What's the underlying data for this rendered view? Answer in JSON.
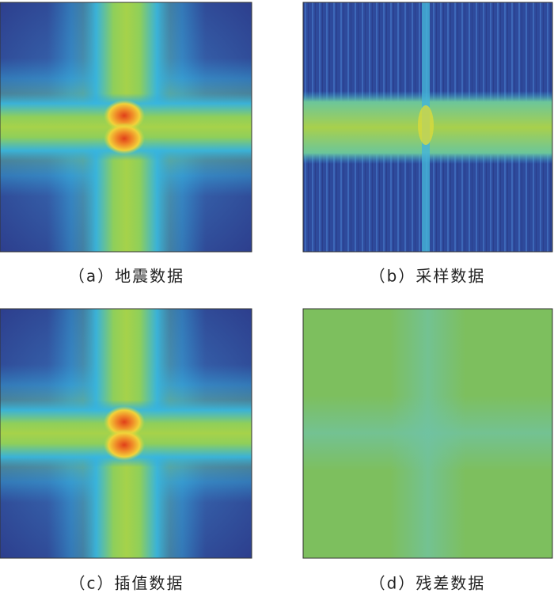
{
  "panels": [
    {
      "caption": "（a）地震数据"
    },
    {
      "caption": "（b）采样数据"
    },
    {
      "caption": "（c）插值数据"
    },
    {
      "caption": "（d）残差数据"
    }
  ]
}
